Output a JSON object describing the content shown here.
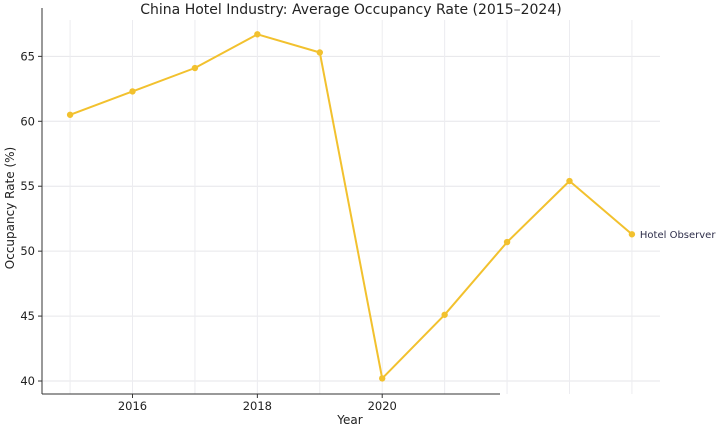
{
  "chart_data": {
    "type": "line",
    "title": "China Hotel Industry: Average Occupancy Rate (2015–2024)",
    "xlabel": "Year",
    "ylabel": "Occupancy Rate (%)",
    "xlim": [
      2014.55,
      2024.45
    ],
    "ylim": [
      39.0,
      67.8
    ],
    "x_ticks": [
      2016,
      2018,
      2020
    ],
    "y_ticks": [
      40,
      45,
      50,
      55,
      60,
      65
    ],
    "grid": true,
    "series": [
      {
        "x": [
          2015,
          2016,
          2017,
          2018,
          2019,
          2020,
          2021,
          2022,
          2023,
          2024
        ],
        "values": [
          60.5,
          62.3,
          64.1,
          66.7,
          65.3,
          40.2,
          45.1,
          50.7,
          55.4,
          51.3
        ],
        "color": "#f2c12e"
      }
    ],
    "annotations": [
      {
        "text": "Hotel Observer",
        "x": 2024,
        "y": 51.3
      }
    ]
  }
}
